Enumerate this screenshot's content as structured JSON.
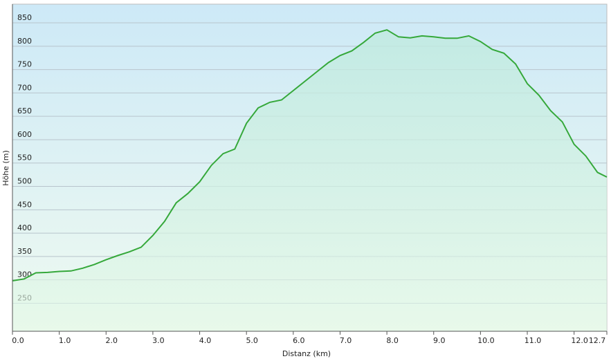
{
  "chart_data": {
    "type": "area",
    "x_label": "Distanz  (km)",
    "y_label": "Höhe (m)",
    "x": [
      0,
      0.25,
      0.5,
      0.75,
      1.0,
      1.25,
      1.5,
      1.75,
      2.0,
      2.25,
      2.5,
      2.75,
      3.0,
      3.25,
      3.5,
      3.75,
      4.0,
      4.25,
      4.5,
      4.75,
      5.0,
      5.25,
      5.5,
      5.75,
      6.0,
      6.25,
      6.5,
      6.75,
      7.0,
      7.25,
      7.5,
      7.75,
      8.0,
      8.25,
      8.5,
      8.75,
      9.0,
      9.25,
      9.5,
      9.75,
      10.0,
      10.25,
      10.5,
      10.75,
      11.0,
      11.25,
      11.5,
      11.75,
      12.0,
      12.25,
      12.5,
      12.7
    ],
    "values": [
      298,
      302,
      315,
      316,
      318,
      319,
      325,
      333,
      343,
      352,
      360,
      370,
      395,
      425,
      465,
      485,
      510,
      545,
      570,
      580,
      635,
      668,
      680,
      685,
      705,
      725,
      745,
      765,
      780,
      790,
      808,
      828,
      835,
      820,
      818,
      822,
      820,
      817,
      817,
      822,
      810,
      793,
      785,
      762,
      720,
      695,
      662,
      638,
      590,
      565,
      530,
      520
    ],
    "color": "#35a83a",
    "xlim": [
      0,
      12.7
    ],
    "xticks": [
      {
        "value": 0,
        "label": "0.0"
      },
      {
        "value": 1,
        "label": "1.0"
      },
      {
        "value": 2,
        "label": "2.0"
      },
      {
        "value": 3,
        "label": "3.0"
      },
      {
        "value": 4,
        "label": "4.0"
      },
      {
        "value": 5,
        "label": "5.0"
      },
      {
        "value": 6,
        "label": "6.0"
      },
      {
        "value": 7,
        "label": "7.0"
      },
      {
        "value": 8,
        "label": "8.0"
      },
      {
        "value": 9,
        "label": "9.0"
      },
      {
        "value": 10,
        "label": "10.0"
      },
      {
        "value": 11,
        "label": "11.0"
      },
      {
        "value": 12,
        "label": "12.0"
      },
      12.7
    ],
    "ylim": [
      190,
      890
    ],
    "yticks": [
      250,
      300,
      350,
      400,
      450,
      500,
      550,
      600,
      650,
      700,
      750,
      800,
      850
    ],
    "grid": true
  }
}
